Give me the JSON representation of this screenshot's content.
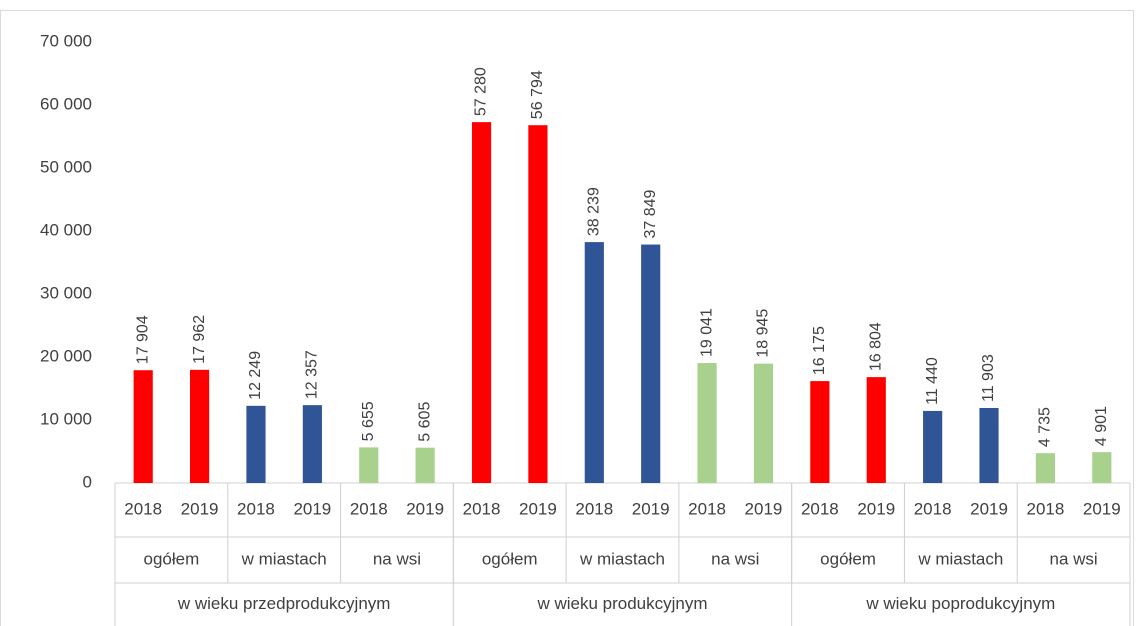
{
  "chart_data": {
    "type": "bar",
    "ylim": [
      0,
      70000
    ],
    "yticks": [
      0,
      {
        "value": 10000,
        "label": "10 000"
      },
      {
        "value": 20000,
        "label": "20 000"
      },
      {
        "value": 30000,
        "label": "30 000"
      },
      {
        "value": 40000,
        "label": "40 000"
      },
      {
        "value": 50000,
        "label": "50 000"
      },
      {
        "value": 60000,
        "label": "60 000"
      },
      {
        "value": 70000,
        "label": "70 000"
      }
    ],
    "grid": false,
    "groups": [
      {
        "name": "w wieku przedprodukcyjnym",
        "subgroups": [
          {
            "name": "ogółem",
            "color": "#ff0000",
            "categories": [
              "2018",
              "2019"
            ],
            "values": [
              17904,
              17962
            ],
            "value_labels": [
              "17 904",
              "17 962"
            ]
          },
          {
            "name": "w miastach",
            "color": "#2f5597",
            "categories": [
              "2018",
              "2019"
            ],
            "values": [
              12249,
              12357
            ],
            "value_labels": [
              "12 249",
              "12 357"
            ]
          },
          {
            "name": "na wsi",
            "color": "#a9d18e",
            "categories": [
              "2018",
              "2019"
            ],
            "values": [
              5655,
              5605
            ],
            "value_labels": [
              "5 655",
              "5 605"
            ]
          }
        ]
      },
      {
        "name": "w wieku produkcyjnym",
        "subgroups": [
          {
            "name": "ogółem",
            "color": "#ff0000",
            "categories": [
              "2018",
              "2019"
            ],
            "values": [
              57280,
              56794
            ],
            "value_labels": [
              "57 280",
              "56 794"
            ]
          },
          {
            "name": "w miastach",
            "color": "#2f5597",
            "categories": [
              "2018",
              "2019"
            ],
            "values": [
              38239,
              37849
            ],
            "value_labels": [
              "38 239",
              "37 849"
            ]
          },
          {
            "name": "na wsi",
            "color": "#a9d18e",
            "categories": [
              "2018",
              "2019"
            ],
            "values": [
              19041,
              18945
            ],
            "value_labels": [
              "19 041",
              "18 945"
            ]
          }
        ]
      },
      {
        "name": "w wieku poprodukcyjnym",
        "subgroups": [
          {
            "name": "ogółem",
            "color": "#ff0000",
            "categories": [
              "2018",
              "2019"
            ],
            "values": [
              16175,
              16804
            ],
            "value_labels": [
              "16 175",
              "16 804"
            ]
          },
          {
            "name": "w miastach",
            "color": "#2f5597",
            "categories": [
              "2018",
              "2019"
            ],
            "values": [
              11440,
              11903
            ],
            "value_labels": [
              "11 440",
              "11 903"
            ]
          },
          {
            "name": "na wsi",
            "color": "#a9d18e",
            "categories": [
              "2018",
              "2019"
            ],
            "values": [
              4735,
              4901
            ],
            "value_labels": [
              "4 735",
              "4 901"
            ]
          }
        ]
      }
    ]
  }
}
